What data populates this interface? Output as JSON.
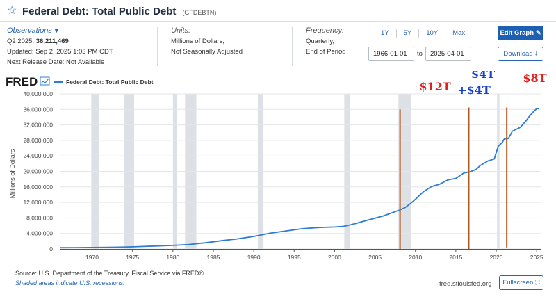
{
  "header": {
    "title": "Federal Debt: Total Public Debt",
    "series_id": "(GFDEBTN)"
  },
  "observations": {
    "label": "Observations",
    "latest_period": "Q2 2025:",
    "latest_value": "36,211,469",
    "updated": "Updated: Sep 2, 2025 1:03 PM CDT",
    "next_release": "Next Release Date: Not Available"
  },
  "units": {
    "label": "Units:",
    "line1": "Millions of Dollars,",
    "line2": "Not Seasonally Adjusted"
  },
  "frequency": {
    "label": "Frequency:",
    "line1": "Quarterly,",
    "line2": "End of Period"
  },
  "range": {
    "buttons": [
      "1Y",
      "5Y",
      "10Y",
      "Max"
    ],
    "start": "1966-01-01",
    "to_label": "to",
    "end": "2025-04-01"
  },
  "actions": {
    "edit_graph": "Edit Graph",
    "download": "Download",
    "fullscreen": "Fullscreen"
  },
  "footer": {
    "source": "Source: U.S. Department of the Treasury. Fiscal Service via FRED®",
    "recessions_note": "Shaded areas indicate U.S. recessions.",
    "url": "fred.stlouisfed.org"
  },
  "colors": {
    "series": "#2d7dd2",
    "recession": "#dde1e6",
    "annotation_line": "#b35a1e",
    "annotation_red": "#e01f1f",
    "annotation_blue": "#1a3fd0"
  },
  "chart_data": {
    "type": "line",
    "brand": "FRED",
    "legend": "Federal Debt: Total Public Debt",
    "ylabel": "Millions of Dollars",
    "xlabel": "",
    "x_range": [
      1966,
      2025.5
    ],
    "ylim": [
      0,
      40000000
    ],
    "y_ticks": [
      0,
      4000000,
      8000000,
      12000000,
      16000000,
      20000000,
      24000000,
      28000000,
      32000000,
      36000000,
      40000000
    ],
    "y_tick_labels": [
      "0",
      "4,000,000",
      "8,000,000",
      "12,000,000",
      "16,000,000",
      "20,000,000",
      "24,000,000",
      "28,000,000",
      "32,000,000",
      "36,000,000",
      "40,000,000"
    ],
    "x_ticks": [
      1970,
      1975,
      1980,
      1985,
      1990,
      1995,
      2000,
      2005,
      2010,
      2015,
      2020,
      2025
    ],
    "x_tick_labels": [
      "1970",
      "1975",
      "1980",
      "1985",
      "1990",
      "1995",
      "2000",
      "2005",
      "2010",
      "2015",
      "2020",
      "2025"
    ],
    "recessions": [
      [
        1969.9,
        1970.9
      ],
      [
        1973.9,
        1975.2
      ],
      [
        1980.0,
        1980.5
      ],
      [
        1981.5,
        1982.9
      ],
      [
        1990.5,
        1991.2
      ],
      [
        2001.2,
        2001.9
      ],
      [
        2007.9,
        2009.5
      ],
      [
        2020.1,
        2020.4
      ]
    ],
    "series": [
      {
        "name": "Federal Debt: Total Public Debt",
        "x": [
          1966,
          1968,
          1970,
          1972,
          1974,
          1976,
          1978,
          1980,
          1982,
          1984,
          1986,
          1988,
          1990,
          1992,
          1994,
          1996,
          1998,
          2000,
          2001,
          2002,
          2004,
          2006,
          2008,
          2008.75,
          2009.5,
          2010,
          2011,
          2012,
          2013,
          2014,
          2015,
          2016,
          2016.75,
          2017.5,
          2018,
          2019,
          2019.75,
          2020.25,
          2020.75,
          2021,
          2021.5,
          2022,
          2023,
          2023.75,
          2024,
          2024.5,
          2025,
          2025.25
        ],
        "values": [
          320000,
          345000,
          380000,
          430000,
          480000,
          620000,
          780000,
          910000,
          1140000,
          1570000,
          2120000,
          2600000,
          3230000,
          4060000,
          4640000,
          5220000,
          5530000,
          5670000,
          5800000,
          6230000,
          7380000,
          8510000,
          9990000,
          10700000,
          11900000,
          12800000,
          14800000,
          16100000,
          16700000,
          17800000,
          18200000,
          19600000,
          19900000,
          20500000,
          21500000,
          22700000,
          23200000,
          26500000,
          27500000,
          28400000,
          28500000,
          30400000,
          31400000,
          33200000,
          34000000,
          35200000,
          36200000,
          36211469
        ]
      }
    ],
    "annotations": [
      {
        "label": "$12T",
        "x": 2008.1,
        "color": "red"
      },
      {
        "label": "$4T",
        "x": 2016.5,
        "color": "blue"
      },
      {
        "label": "+$4T",
        "x": 2016.5,
        "color": "blue"
      },
      {
        "label": "$8T",
        "x": 2021.2,
        "color": "red"
      }
    ]
  }
}
